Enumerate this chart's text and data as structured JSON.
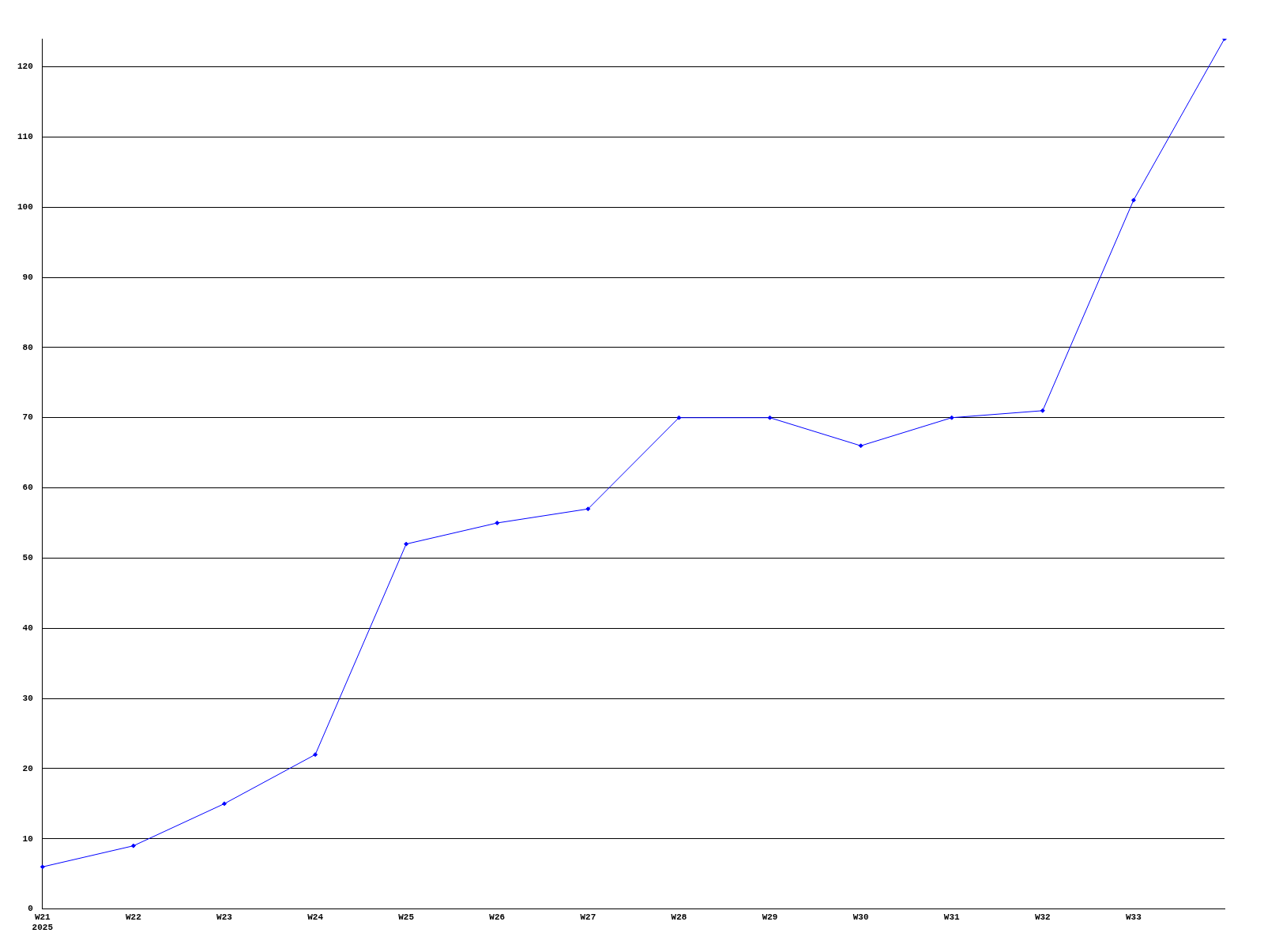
{
  "chart_data": {
    "type": "line",
    "categories": [
      "W21\n2025",
      "W22",
      "W23",
      "W24",
      "W25",
      "W26",
      "W27",
      "W28",
      "W29",
      "W30",
      "W31",
      "W32",
      "W33",
      null
    ],
    "series": [
      {
        "color": "#0000ff",
        "values": [
          6,
          9,
          15,
          22,
          52,
          55,
          57,
          70,
          70,
          66,
          70,
          71,
          101,
          124
        ]
      }
    ],
    "ylim": [
      0,
      124
    ],
    "yticks": [
      0,
      10,
      20,
      30,
      40,
      50,
      60,
      70,
      80,
      90,
      100,
      110,
      120
    ],
    "grid": "y",
    "legend": false,
    "marker": "diamond",
    "line_style": "solid"
  }
}
